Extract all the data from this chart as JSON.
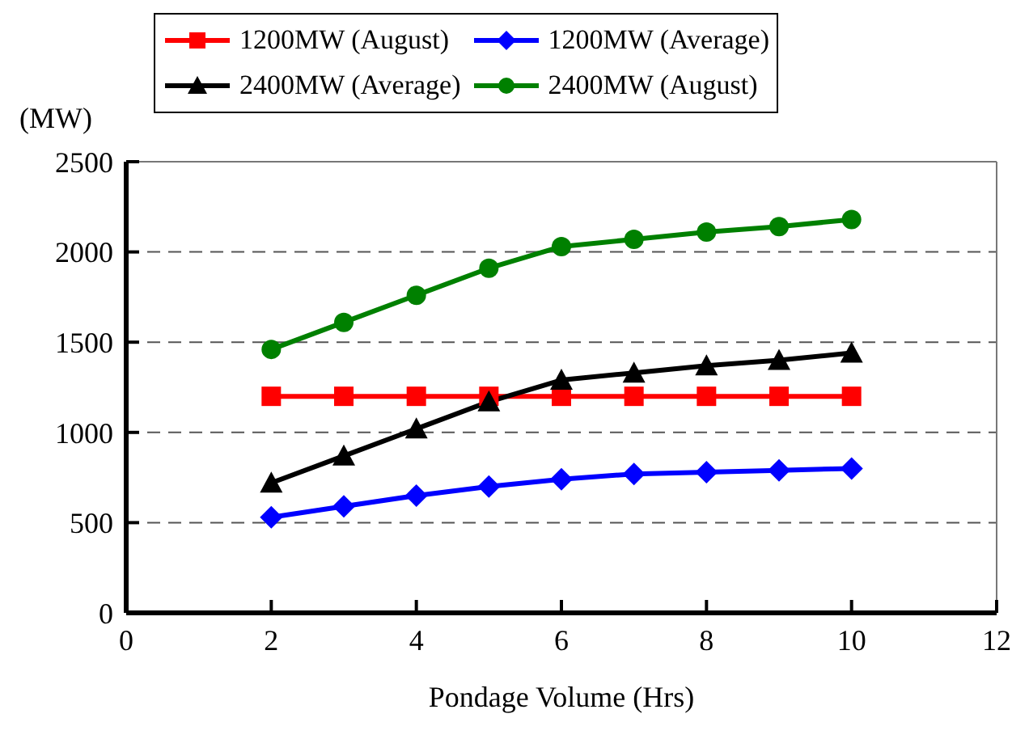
{
  "chart_data": {
    "type": "line",
    "xlabel": "Pondage Volume (Hrs)",
    "ylabel": "(MW)",
    "x": [
      2,
      3,
      4,
      5,
      6,
      7,
      8,
      9,
      10
    ],
    "series": [
      {
        "name": "1200MW (August)",
        "color": "#ff0000",
        "marker": "square",
        "values": [
          1200,
          1200,
          1200,
          1200,
          1200,
          1200,
          1200,
          1200,
          1200
        ]
      },
      {
        "name": "1200MW (Average)",
        "color": "#0000ff",
        "marker": "diamond",
        "values": [
          530,
          590,
          650,
          700,
          740,
          770,
          780,
          790,
          800
        ]
      },
      {
        "name": "2400MW (Average)",
        "color": "#000000",
        "marker": "triangle",
        "values": [
          720,
          870,
          1020,
          1170,
          1290,
          1330,
          1370,
          1400,
          1440
        ]
      },
      {
        "name": "2400MW (August)",
        "color": "#008000",
        "marker": "circle",
        "values": [
          1460,
          1610,
          1760,
          1910,
          2030,
          2070,
          2110,
          2140,
          2180
        ]
      }
    ],
    "xlim": [
      0,
      12
    ],
    "xticks": [
      0,
      2,
      4,
      6,
      8,
      10,
      12
    ],
    "ylim": [
      0,
      2500
    ],
    "yticks": [
      0,
      500,
      1000,
      1500,
      2000,
      2500
    ],
    "grid": "y",
    "legend": "top",
    "line_style": "solid"
  }
}
